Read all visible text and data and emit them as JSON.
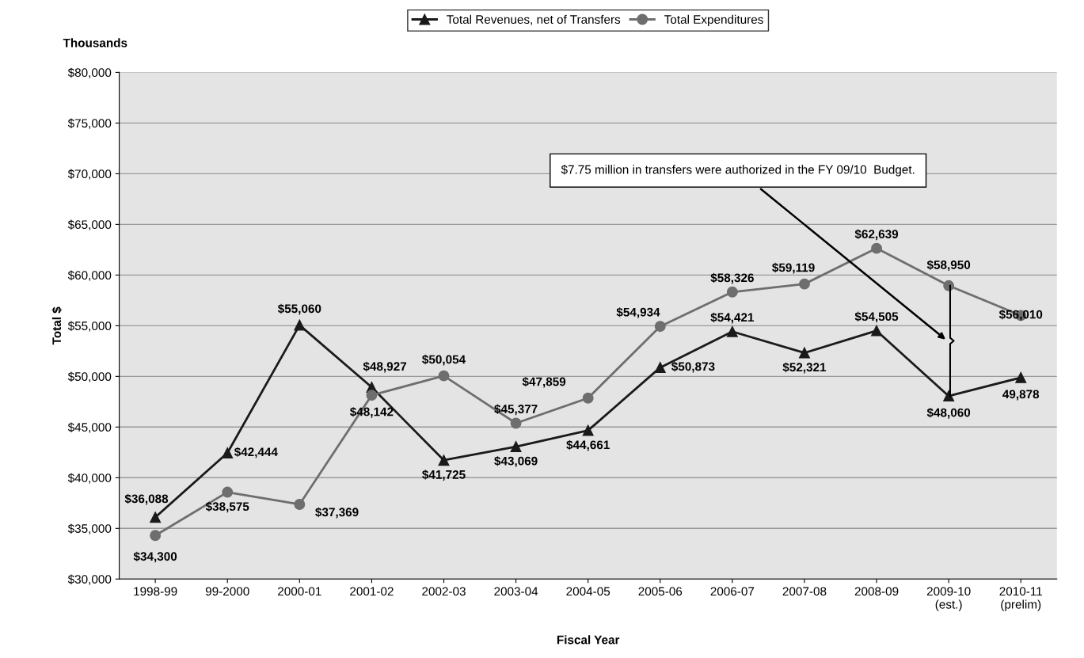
{
  "chart_data": {
    "type": "line",
    "xlabel": "Fiscal Year",
    "ylabel": "Total $",
    "categories": [
      "1998-99",
      "99-2000",
      "2000-01",
      "2001-02",
      "2002-03",
      "2003-04",
      "2004-05",
      "2005-06",
      "2006-07",
      "2007-08",
      "2008-09",
      "2009-10\n(est.)",
      "2010-11\n(prelim)"
    ],
    "series": [
      {
        "name": "Total Revenues, net of Transfers",
        "color": "#1a1a1a",
        "marker": "triangle",
        "values": [
          36088,
          42444,
          55060,
          48927,
          41725,
          43069,
          44661,
          50873,
          54421,
          52321,
          54505,
          48060,
          49878
        ],
        "value_labels": [
          "$36,088",
          "$42,444",
          "$55,060",
          "$48,927",
          "$41,725",
          "$43,069",
          "$44,661",
          "$50,873",
          "$54,421",
          "$52,321",
          "$54,505",
          "$48,060",
          "49,878"
        ]
      },
      {
        "name": "Total Expenditures",
        "color": "#6e6e6e",
        "marker": "circle",
        "values": [
          34300,
          38575,
          37369,
          48142,
          50054,
          45377,
          47859,
          54934,
          58326,
          59119,
          62639,
          58950,
          56010
        ],
        "value_labels": [
          "$34,300",
          "$38,575",
          "$37,369",
          "$48,142",
          "$50,054",
          "$45,377",
          "$47,859",
          "$54,934",
          "$58,326",
          "$59,119",
          "$62,639",
          "$58,950",
          "$56,010"
        ]
      }
    ],
    "ylim": [
      30000,
      80000
    ],
    "yticks": [
      {
        "value": 30000,
        "label": "$30,000"
      },
      {
        "value": 35000,
        "label": "$35,000"
      },
      {
        "value": 40000,
        "label": "$40,000"
      },
      {
        "value": 45000,
        "label": "$45,000"
      },
      {
        "value": 50000,
        "label": "$50,000"
      },
      {
        "value": 55000,
        "label": "$55,000"
      },
      {
        "value": 60000,
        "label": "$60,000"
      },
      {
        "value": 65000,
        "label": "$65,000"
      },
      {
        "value": 70000,
        "label": "$70,000"
      },
      {
        "value": 75000,
        "label": "$75,000"
      },
      {
        "value": 80000,
        "label": "$80,000"
      }
    ],
    "grid": "y",
    "legend": "top",
    "line_style": "solid",
    "annotations": [
      "Thousands",
      "$7.75 million in transfers were authorized in the FY 09/10  Budget."
    ]
  }
}
